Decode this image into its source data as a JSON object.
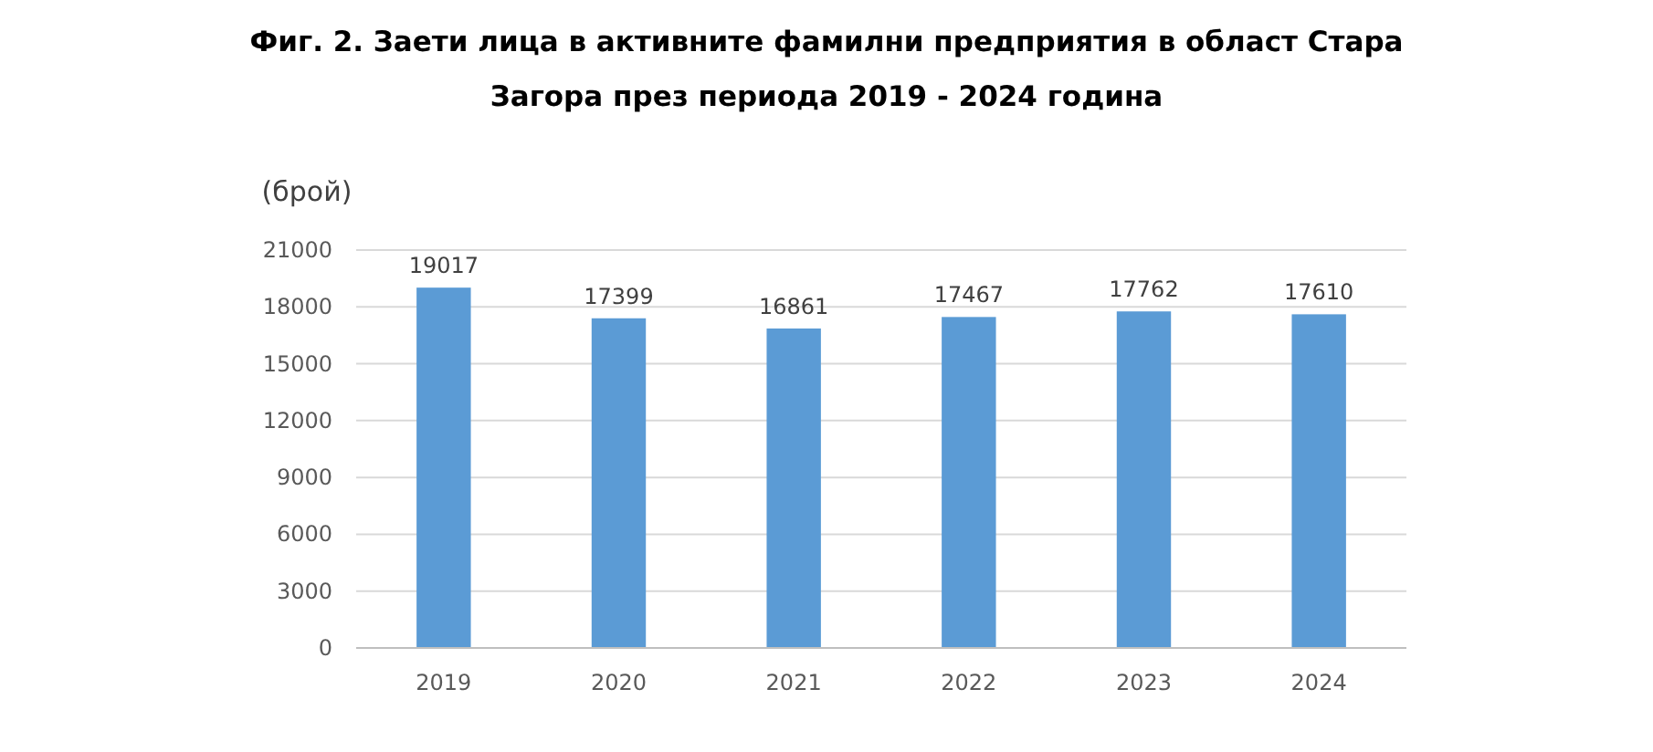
{
  "chart_data": {
    "type": "bar",
    "title": "Фиг. 2. Заети лица в активните фамилни предприятия в област Стара Загора през периода 2019 - 2024 година",
    "ylabel": "(брой)",
    "categories": [
      "2019",
      "2020",
      "2021",
      "2022",
      "2023",
      "2024"
    ],
    "values": [
      19017,
      17399,
      16861,
      17467,
      17762,
      17610
    ],
    "color": "#5b9bd5",
    "ylim": [
      0,
      21000
    ],
    "yticks": [
      0,
      3000,
      6000,
      9000,
      12000,
      15000,
      18000,
      21000
    ],
    "grid": "y",
    "data_labels": true
  }
}
